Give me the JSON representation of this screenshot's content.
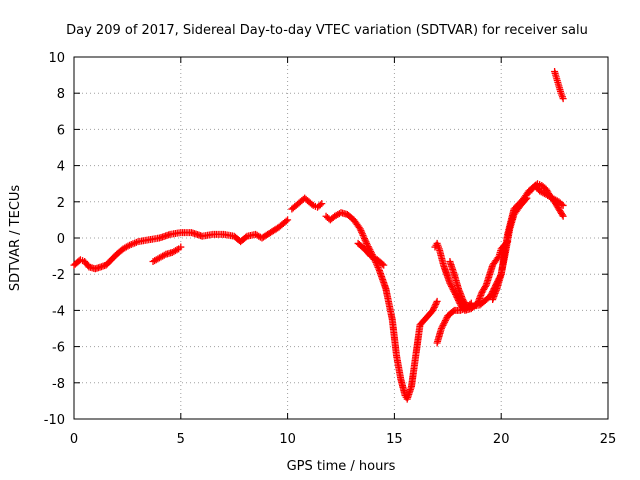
{
  "chart_data": {
    "type": "scatter",
    "title": "Day 209 of 2017, Sidereal Day-to-day VTEC variation (SDTVAR) for receiver salu",
    "xlabel": "GPS time / hours",
    "ylabel": "SDTVAR / TECUs",
    "xlim": [
      0,
      25
    ],
    "ylim": [
      -10,
      10
    ],
    "x_ticks": [
      "0",
      "5",
      "10",
      "15",
      "20",
      "25"
    ],
    "y_ticks": [
      "10",
      "8",
      "6",
      "4",
      "2",
      "0",
      "-2",
      "-4",
      "-6",
      "-8",
      "-10"
    ],
    "grid": true,
    "legend": "none",
    "marker": "+",
    "color": "#ff0000",
    "series": [
      {
        "x": [
          0.0,
          0.3,
          0.5,
          0.7,
          1.0,
          1.5,
          2.0,
          2.3,
          2.6,
          3.0,
          3.5,
          4.0,
          4.5,
          5.0,
          5.5,
          6.0,
          6.5,
          7.0,
          7.5,
          7.8,
          8.1,
          8.5,
          8.8,
          9.2,
          9.6,
          10.0
        ],
        "y": [
          -1.5,
          -1.2,
          -1.3,
          -1.6,
          -1.7,
          -1.5,
          -0.9,
          -0.6,
          -0.4,
          -0.2,
          -0.1,
          0.0,
          0.2,
          0.3,
          0.3,
          0.1,
          0.2,
          0.2,
          0.1,
          -0.2,
          0.1,
          0.2,
          0.0,
          0.3,
          0.6,
          1.0
        ]
      },
      {
        "x": [
          3.7,
          4.0,
          4.3,
          4.6,
          4.9,
          5.0
        ],
        "y": [
          -1.3,
          -1.1,
          -0.9,
          -0.8,
          -0.6,
          -0.5
        ]
      },
      {
        "x": [
          10.2,
          10.4,
          10.6,
          10.8,
          11.0,
          11.2,
          11.4,
          11.6
        ],
        "y": [
          1.6,
          1.8,
          2.0,
          2.2,
          2.0,
          1.8,
          1.7,
          1.9
        ]
      },
      {
        "x": [
          11.8,
          12.0,
          12.2,
          12.5,
          12.8,
          13.1,
          13.4,
          13.7,
          14.0,
          14.3,
          14.6,
          14.9,
          15.1,
          15.3,
          15.5,
          15.6,
          15.8,
          16.0,
          16.2,
          16.5,
          16.8,
          17.0
        ],
        "y": [
          1.2,
          1.0,
          1.2,
          1.4,
          1.3,
          1.0,
          0.5,
          -0.3,
          -1.0,
          -1.8,
          -2.8,
          -4.5,
          -6.5,
          -7.8,
          -8.7,
          -8.9,
          -8.2,
          -6.5,
          -4.8,
          -4.4,
          -4.0,
          -3.5
        ]
      },
      {
        "x": [
          13.3,
          13.6,
          13.9,
          14.2,
          14.5
        ],
        "y": [
          -0.3,
          -0.6,
          -1.0,
          -1.2,
          -1.5
        ]
      },
      {
        "x": [
          16.9,
          17.0,
          17.1,
          17.3,
          17.6,
          17.9,
          18.1,
          18.3,
          18.6,
          18.9,
          19.1,
          19.3,
          19.6,
          19.9,
          20.0,
          20.3
        ],
        "y": [
          -0.5,
          -0.3,
          -0.6,
          -1.5,
          -2.5,
          -3.2,
          -3.7,
          -4.0,
          -3.9,
          -3.6,
          -3.0,
          -2.6,
          -1.5,
          -1.0,
          -0.6,
          -0.2
        ]
      },
      {
        "x": [
          17.0,
          17.2,
          17.5,
          17.8,
          18.1,
          18.5,
          19.0,
          19.5,
          20.0,
          20.3,
          20.6,
          21.0,
          21.3,
          21.6,
          21.8,
          22.1,
          22.4,
          22.7,
          22.9
        ],
        "y": [
          -5.8,
          -5.0,
          -4.3,
          -4.0,
          -4.0,
          -3.8,
          -3.7,
          -3.2,
          -2.0,
          0.2,
          1.6,
          2.1,
          2.6,
          2.9,
          2.6,
          2.4,
          2.2,
          2.0,
          1.8
        ]
      },
      {
        "x": [
          17.6,
          17.8,
          18.0,
          18.2,
          18.4,
          18.6
        ],
        "y": [
          -1.3,
          -2.0,
          -2.8,
          -3.4,
          -3.8,
          -3.6
        ]
      },
      {
        "x": [
          19.6,
          19.8,
          20.0,
          20.2,
          20.4,
          20.6,
          20.9,
          21.2
        ],
        "y": [
          -3.4,
          -2.8,
          -2.0,
          -0.8,
          0.5,
          1.3,
          1.8,
          2.2
        ]
      },
      {
        "x": [
          21.3,
          21.5,
          21.7,
          21.9,
          22.1,
          22.3,
          22.5,
          22.7,
          22.9
        ],
        "y": [
          2.5,
          2.8,
          3.0,
          2.9,
          2.7,
          2.3,
          2.0,
          1.6,
          1.2
        ]
      },
      {
        "x": [
          22.5,
          22.6,
          22.7,
          22.8,
          22.9
        ],
        "y": [
          9.2,
          8.8,
          8.4,
          8.0,
          7.7
        ]
      }
    ]
  }
}
